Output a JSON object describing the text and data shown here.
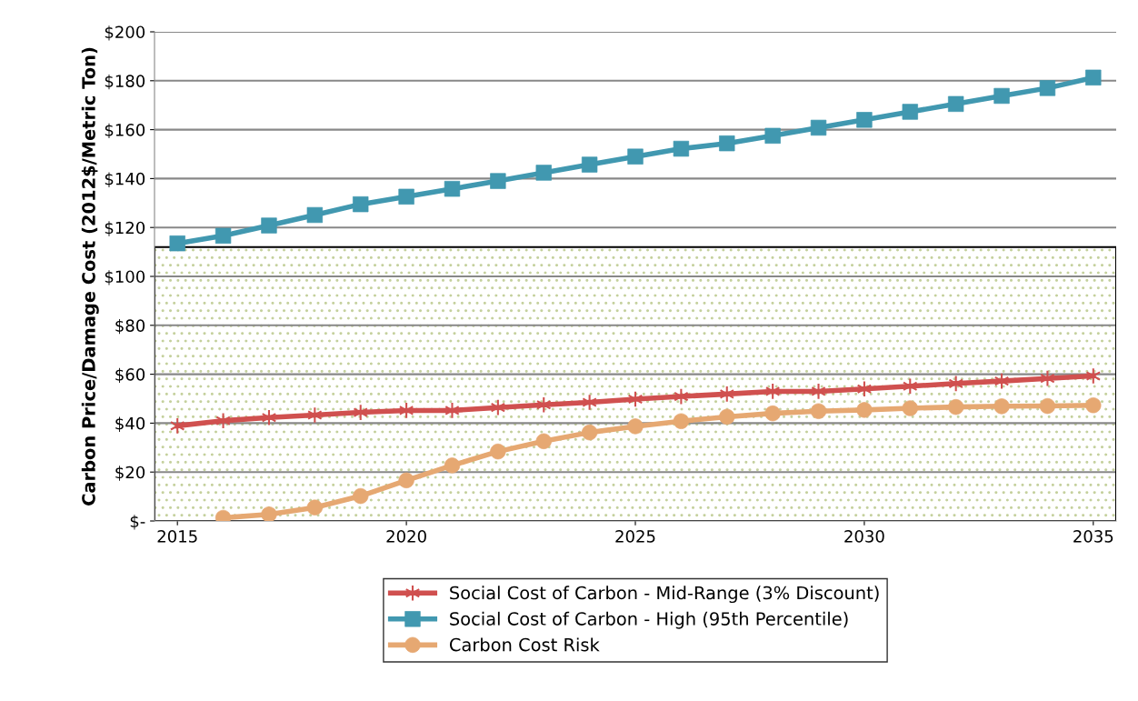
{
  "chart_data": {
    "type": "line",
    "ylabel": "Carbon Price/Damage Cost (2012$/Metric Ton)",
    "x": [
      2015,
      2016,
      2017,
      2018,
      2019,
      2020,
      2021,
      2022,
      2023,
      2024,
      2025,
      2026,
      2027,
      2028,
      2029,
      2030,
      2031,
      2032,
      2033,
      2034,
      2035
    ],
    "series": [
      {
        "name": "Social Cost of Carbon - Mid-Range (3% Discount)",
        "color": "#d0504f",
        "marker": "cross",
        "values": [
          38.9,
          41.0,
          42.3,
          43.3,
          44.4,
          45.2,
          45.2,
          46.4,
          47.5,
          48.5,
          49.8,
          50.9,
          51.9,
          53.0,
          53.0,
          54.0,
          55.1,
          56.2,
          57.2,
          58.3,
          59.3
        ]
      },
      {
        "name": "Social Cost of Carbon - High (95th Percentile)",
        "color": "#4198b0",
        "marker": "square",
        "values": [
          113.5,
          116.6,
          120.8,
          125.1,
          129.5,
          132.6,
          135.8,
          139.0,
          142.4,
          145.7,
          149.0,
          152.2,
          154.4,
          157.5,
          160.8,
          164.0,
          167.3,
          170.5,
          173.8,
          177.0,
          181.3
        ]
      },
      {
        "name": "Carbon Cost Risk",
        "color": "#e6a872",
        "marker": "circle",
        "values": [
          null,
          1.3,
          2.7,
          5.5,
          10.2,
          16.6,
          22.7,
          28.4,
          32.6,
          36.2,
          38.7,
          40.8,
          42.6,
          44.0,
          44.9,
          45.4,
          46.1,
          46.6,
          46.9,
          47.0,
          47.3
        ]
      }
    ],
    "xlim": [
      2014.5,
      2035.5
    ],
    "xticks": [
      2015,
      2020,
      2025,
      2030,
      2035
    ],
    "ylim": [
      0,
      200
    ],
    "yticks": [
      {
        "value": 0,
        "label": "$-"
      },
      {
        "value": 20,
        "label": "$20"
      },
      {
        "value": 40,
        "label": "$40"
      },
      {
        "value": 60,
        "label": "$60"
      },
      {
        "value": 80,
        "label": "$80"
      },
      {
        "value": 100,
        "label": "$100"
      },
      {
        "value": 120,
        "label": "$120"
      },
      {
        "value": 140,
        "label": "$140"
      },
      {
        "value": 160,
        "label": "$160"
      },
      {
        "value": 180,
        "label": "$180"
      },
      {
        "value": 200,
        "label": "$200"
      }
    ],
    "bands": [
      {
        "axis": "y",
        "from": 0,
        "to": 112,
        "color": "#c4d09c"
      }
    ],
    "grid": "y",
    "legend": "bottom",
    "line_style": "solid"
  }
}
